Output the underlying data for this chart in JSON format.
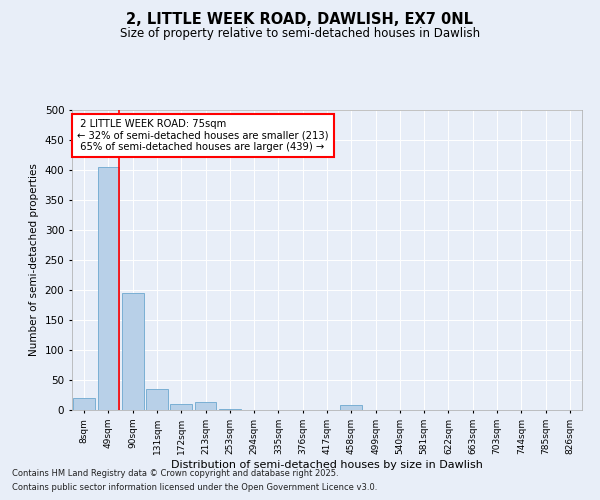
{
  "title1": "2, LITTLE WEEK ROAD, DAWLISH, EX7 0NL",
  "title2": "Size of property relative to semi-detached houses in Dawlish",
  "xlabel": "Distribution of semi-detached houses by size in Dawlish",
  "ylabel": "Number of semi-detached properties",
  "categories": [
    "8sqm",
    "49sqm",
    "90sqm",
    "131sqm",
    "172sqm",
    "213sqm",
    "253sqm",
    "294sqm",
    "335sqm",
    "376sqm",
    "417sqm",
    "458sqm",
    "499sqm",
    "540sqm",
    "581sqm",
    "622sqm",
    "663sqm",
    "703sqm",
    "744sqm",
    "785sqm",
    "826sqm"
  ],
  "values": [
    20,
    405,
    195,
    35,
    10,
    13,
    2,
    0,
    0,
    0,
    0,
    8,
    0,
    0,
    0,
    0,
    0,
    0,
    0,
    0,
    0
  ],
  "bar_color": "#b8d0e8",
  "bar_edge_color": "#7aafd4",
  "property_label": "2 LITTLE WEEK ROAD: 75sqm",
  "pct_smaller": 32,
  "pct_larger": 65,
  "count_smaller": 213,
  "count_larger": 439,
  "vline_bar_index": 1,
  "ylim": [
    0,
    500
  ],
  "yticks": [
    0,
    50,
    100,
    150,
    200,
    250,
    300,
    350,
    400,
    450,
    500
  ],
  "footer1": "Contains HM Land Registry data © Crown copyright and database right 2025.",
  "footer2": "Contains public sector information licensed under the Open Government Licence v3.0.",
  "bg_color": "#e8eef8",
  "plot_bg_color": "#e8eef8"
}
